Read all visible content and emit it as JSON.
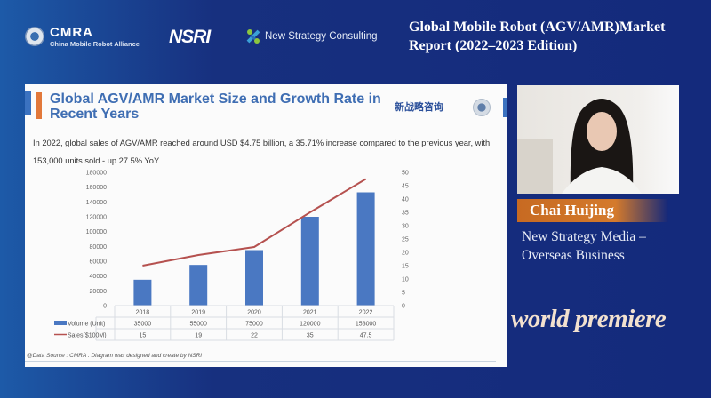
{
  "header": {
    "cmra_title": "CMRA",
    "cmra_subtitle": "China Mobile Robot Alliance",
    "nsri": "NSRI",
    "nsc": "New Strategy Consulting",
    "report_line1": "Global Mobile Robot (AGV/AMR)Market",
    "report_line2": "Report (2022–2023 Edition)"
  },
  "slide": {
    "title": "Global AGV/AMR Market Size and Growth Rate in Recent Years",
    "cn_logo": "新战略咨询",
    "description": "In 2022, global sales of AGV/AMR reached around USD $4.75 billion, a 35.71% increase compared to the previous year, with 153,000 units sold - up 27.5% YoY.",
    "source": "@Data Source : CMRA . Diagram was designed and create by NSRI"
  },
  "speaker": {
    "name": "Chai Huijing",
    "role_line1": "New Strategy Media –",
    "role_line2": "Overseas Business",
    "badge": "world premiere"
  },
  "chart_data": {
    "type": "bar+line",
    "categories": [
      "2018",
      "2019",
      "2020",
      "2021",
      "2022"
    ],
    "series": [
      {
        "name": "Volume (Unit)",
        "type": "bar",
        "axis": "left",
        "color": "#4a78c2",
        "values": [
          35000,
          55000,
          75000,
          120000,
          153000
        ]
      },
      {
        "name": "Sales($100M)",
        "type": "line",
        "axis": "right",
        "color": "#b5514f",
        "values": [
          15,
          19,
          22,
          35,
          47.5
        ]
      }
    ],
    "y_left": {
      "range": [
        0,
        180000
      ],
      "ticks": [
        "0",
        "20000",
        "40000",
        "60000",
        "80000",
        "100000",
        "120000",
        "140000",
        "160000",
        "180000"
      ]
    },
    "y_right": {
      "range": [
        0,
        50
      ],
      "ticks": [
        "0",
        "5",
        "10",
        "15",
        "20",
        "25",
        "30",
        "35",
        "40",
        "45",
        "50"
      ]
    },
    "data_table": true,
    "grid": false
  },
  "colors": {
    "background": "#14287a",
    "accent": "#d47a2c",
    "title_blue": "#3f6eb3"
  }
}
